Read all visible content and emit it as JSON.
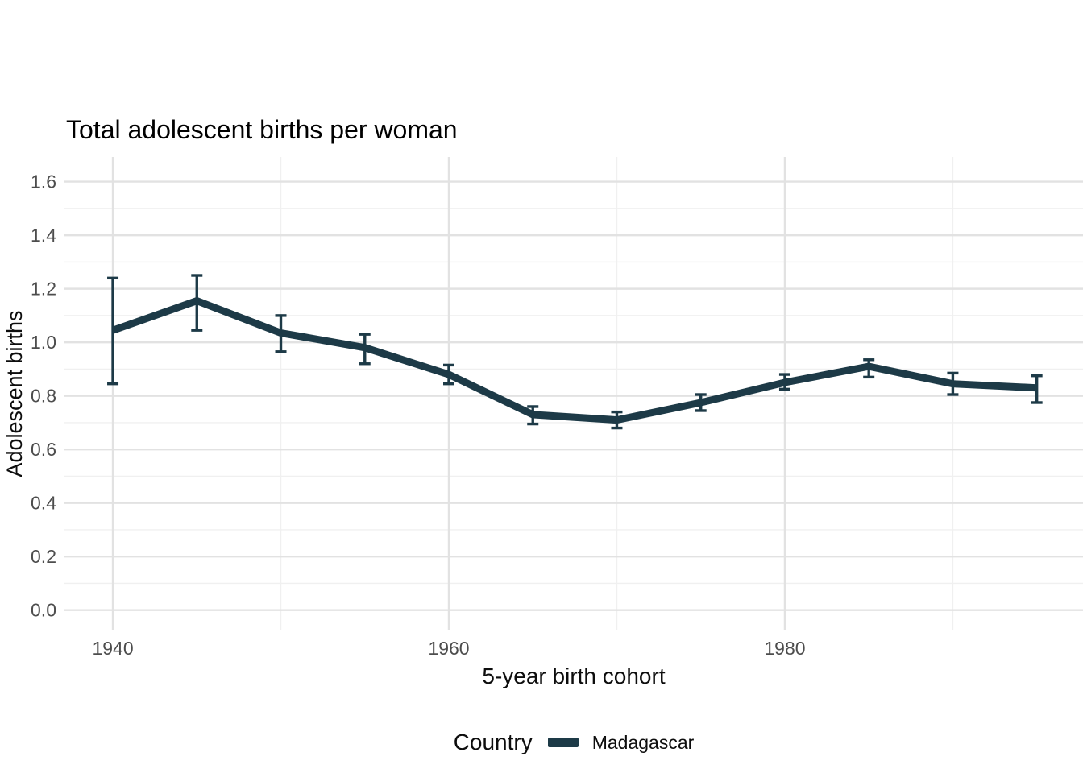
{
  "colors": {
    "background": "#ffffff",
    "series_line": "#1d3a47",
    "grid_major": "#e2e2e2",
    "grid_minor": "#f0f0f0",
    "tick_label": "#4d4d4d",
    "text": "#000000"
  },
  "chart_data": {
    "type": "line",
    "title": "Total adolescent births per woman",
    "xlabel": "5-year birth cohort",
    "ylabel": "Adolescent births",
    "legend_title": "Country",
    "legend_position": "bottom",
    "grid": "major and minor horizontal/vertical light-gray gridlines on white panel",
    "x": [
      1940,
      1945,
      1950,
      1955,
      1960,
      1965,
      1970,
      1975,
      1980,
      1985,
      1990,
      1995
    ],
    "series": [
      {
        "name": "Madagascar",
        "color": "#1d3a47",
        "values": [
          1.045,
          1.155,
          1.035,
          0.98,
          0.88,
          0.73,
          0.71,
          0.775,
          0.85,
          0.91,
          0.845,
          0.83
        ],
        "ci_low": [
          0.845,
          1.045,
          0.965,
          0.92,
          0.845,
          0.695,
          0.68,
          0.745,
          0.825,
          0.87,
          0.805,
          0.775
        ],
        "ci_high": [
          1.24,
          1.25,
          1.1,
          1.03,
          0.915,
          0.76,
          0.74,
          0.805,
          0.88,
          0.935,
          0.885,
          0.875
        ]
      }
    ],
    "x_ticks": {
      "major": [
        1940,
        1960,
        1980
      ],
      "labels": [
        "1940",
        "1960",
        "1980"
      ],
      "minor": [
        1950,
        1970,
        1990
      ]
    },
    "y_ticks": {
      "values": [
        0.0,
        0.2,
        0.4,
        0.6,
        0.8,
        1.0,
        1.2,
        1.4,
        1.6
      ],
      "labels": [
        "0.0",
        "0.2",
        "0.4",
        "0.6",
        "0.8",
        "1.0",
        "1.2",
        "1.4",
        "1.6"
      ]
    },
    "xlim": [
      1937.12,
      1997.75
    ],
    "ylim": [
      -0.076,
      1.692
    ]
  }
}
